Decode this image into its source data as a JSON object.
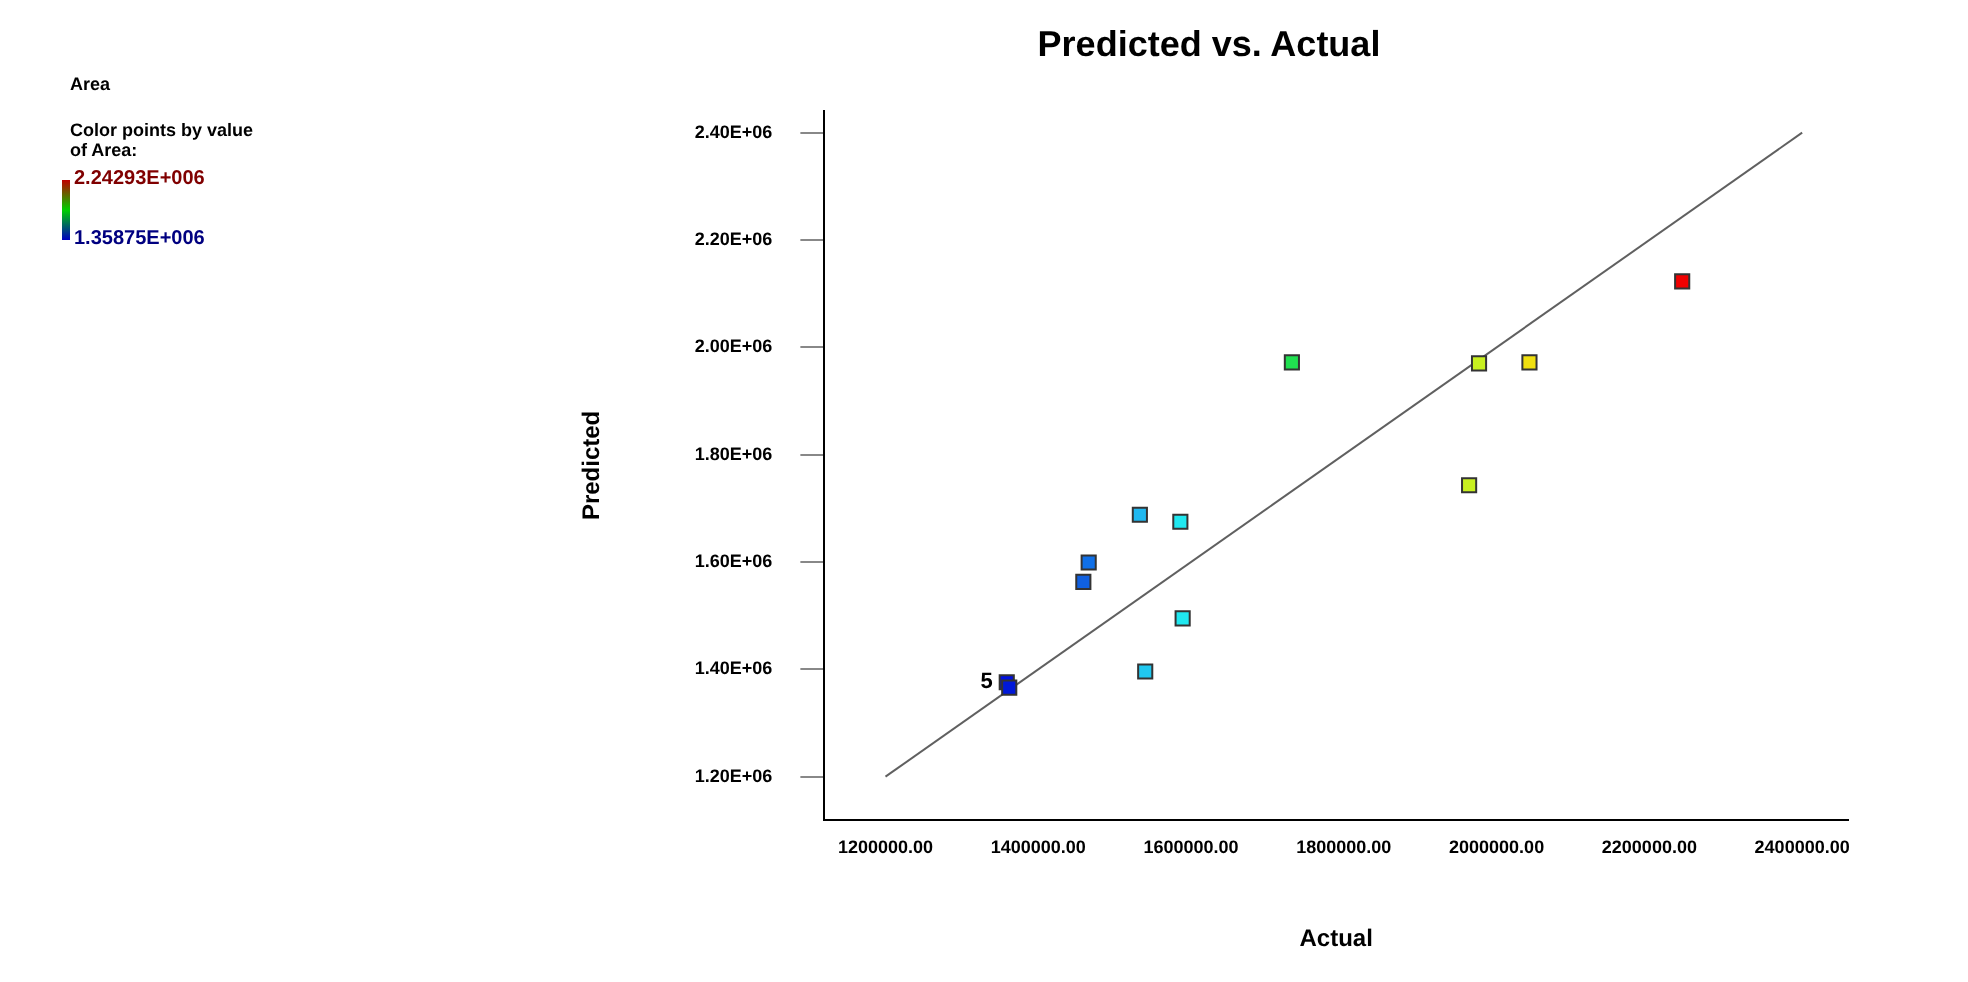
{
  "chart_data": {
    "type": "scatter",
    "title": "Predicted vs. Actual",
    "xlabel": "Actual",
    "ylabel": "Predicted",
    "clabel": "Color points by value of Area:",
    "annotations": [
      "Area",
      {
        "text": "5",
        "x": 1358750,
        "y": 1376000
      }
    ],
    "x": [
      1358750,
      1362000,
      1459000,
      1466000,
      1533000,
      1586000,
      1589000,
      1540000,
      1732000,
      1977000,
      2043000,
      1964000,
      2242930
    ],
    "series": [
      {
        "values": [
          1376000,
          1366000,
          1563000,
          1599000,
          1688000,
          1675000,
          1495000,
          1396000,
          1972000,
          1970000,
          1972000,
          1743000,
          2123000
        ],
        "colors": [
          "#0010e0",
          "#0018d8",
          "#1060e0",
          "#1070e8",
          "#20b8f0",
          "#20e8f0",
          "#20e8f0",
          "#20c8f0",
          "#20e050",
          "#c8f020",
          "#f0e010",
          "#c8f020",
          "#f00000"
        ]
      },
      {
        "type": "line",
        "marker": "none",
        "x": [
          1200000,
          2400000
        ],
        "values": [
          1200000,
          2400000
        ],
        "color": "#606060"
      }
    ],
    "marker": "square",
    "xlim": [
      1120000,
      2460000
    ],
    "ylim": [
      1120000,
      2440000
    ],
    "xticks": [
      {
        "value": 1200000,
        "label": "1200000.00"
      },
      {
        "value": 1400000,
        "label": "1400000.00"
      },
      {
        "value": 1600000,
        "label": "1600000.00"
      },
      {
        "value": 1800000,
        "label": "1800000.00"
      },
      {
        "value": 2000000,
        "label": "2000000.00"
      },
      {
        "value": 2200000,
        "label": "2200000.00"
      },
      {
        "value": 2400000,
        "label": "2400000.00"
      }
    ],
    "yticks": [
      {
        "value": 1200000,
        "label": "1.20E+06"
      },
      {
        "value": 1400000,
        "label": "1.40E+06"
      },
      {
        "value": 1600000,
        "label": "1.60E+06"
      },
      {
        "value": 1800000,
        "label": "1.80E+06"
      },
      {
        "value": 2000000,
        "label": "2.00E+06"
      },
      {
        "value": 2200000,
        "label": "2.20E+06"
      },
      {
        "value": 2400000,
        "label": "2.40E+06"
      }
    ],
    "clim": [
      1358750,
      2242930
    ],
    "cticks": [
      {
        "value": 1358750,
        "label": "1.35875E+006"
      },
      {
        "value": 2242930,
        "label": "2.24293E+006"
      }
    ],
    "grid": false,
    "legend": false
  }
}
